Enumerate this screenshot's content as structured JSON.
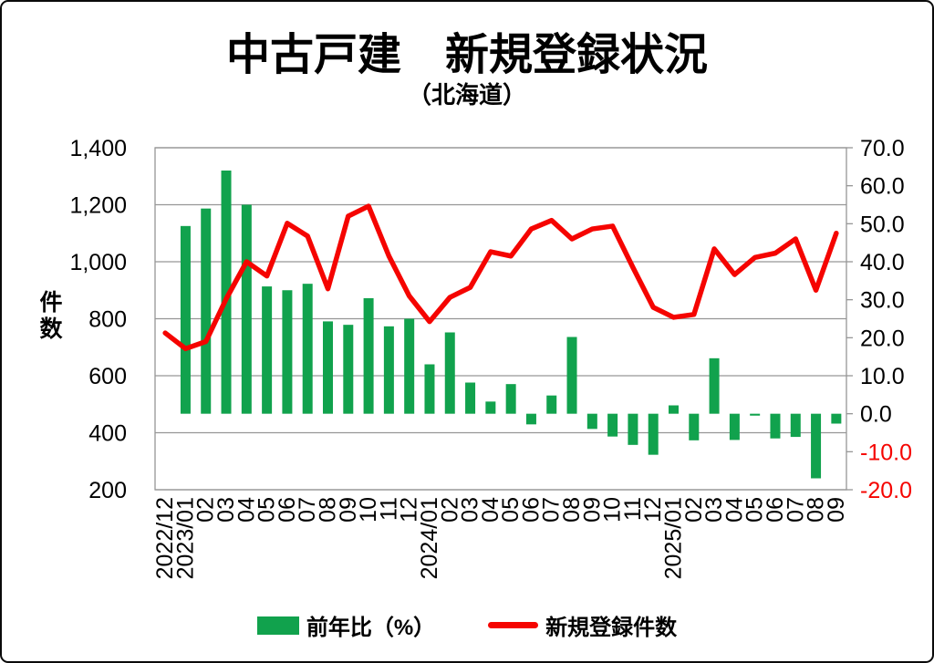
{
  "header": {
    "title": "中古戸建　新規登録状況",
    "subtitle": "（北海道）"
  },
  "colors": {
    "bar_green": "#11A24D",
    "line_red": "#F50400",
    "grid_gray": "#969696",
    "text_black": "#000000",
    "negative_tick_red": "#F50400",
    "background": "#FFFFFF"
  },
  "chart_data": {
    "type": "bar+line combo",
    "title": "中古戸建　新規登録状況",
    "subtitle": "（北海道）",
    "grid": "horizontal gridlines every 200 units of left axis",
    "legend_position": "bottom-center",
    "categories": [
      "2022/12",
      "2023/01",
      "02",
      "03",
      "04",
      "05",
      "06",
      "07",
      "08",
      "09",
      "10",
      "11",
      "12",
      "2024/01",
      "02",
      "03",
      "04",
      "05",
      "06",
      "07",
      "08",
      "09",
      "10",
      "11",
      "12",
      "2025/01",
      "02",
      "03",
      "04",
      "05",
      "06",
      "07",
      "08",
      "09"
    ],
    "left_axis": {
      "label": "件数",
      "min": 200,
      "max": 1400,
      "step": 200,
      "tick_labels": [
        "1,400",
        "1,200",
        "1,000",
        "800",
        "600",
        "400",
        "200"
      ]
    },
    "right_axis": {
      "min": -20,
      "max": 70,
      "step": 10,
      "tick_labels": [
        "70.0",
        "60.0",
        "50.0",
        "40.0",
        "30.0",
        "20.0",
        "10.0",
        "0.0",
        "-10.0",
        "-20.0"
      ]
    },
    "series": [
      {
        "name": "前年比（%）",
        "type": "bar",
        "axis": "right",
        "values": [
          null,
          49.4,
          54,
          64,
          55,
          33.5,
          32.5,
          34.2,
          24.3,
          23.4,
          30.4,
          23,
          25,
          13,
          21.4,
          8.2,
          3.2,
          7.8,
          -2.8,
          4.8,
          20.2,
          -4,
          -6,
          -8.2,
          -10.8,
          2.2,
          -7,
          14.6,
          -6.9,
          -0.5,
          -6.5,
          -6.1,
          -17,
          -2.6
        ]
      },
      {
        "name": "新規登録件数",
        "type": "line",
        "axis": "left",
        "values": [
          750,
          695,
          720,
          870,
          1000,
          950,
          1135,
          1090,
          905,
          1160,
          1195,
          1020,
          880,
          790,
          875,
          910,
          1035,
          1020,
          1115,
          1145,
          1080,
          1115,
          1125,
          980,
          840,
          805,
          815,
          1045,
          955,
          1015,
          1030,
          1080,
          900,
          1100
        ]
      }
    ]
  },
  "legend": {
    "bar_label": "前年比（%）",
    "line_label": "新規登録件数"
  }
}
